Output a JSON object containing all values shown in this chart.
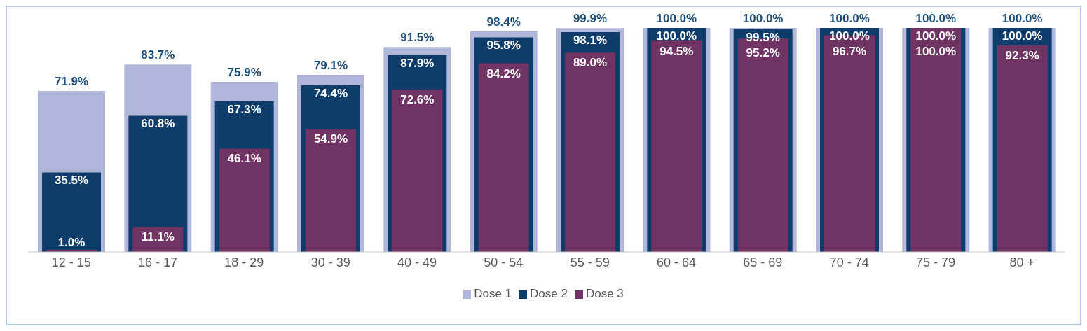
{
  "chart_data": {
    "type": "bar",
    "categories": [
      "12 - 15",
      "16 - 17",
      "18 - 29",
      "30 - 39",
      "40 - 49",
      "50 - 54",
      "55 - 59",
      "60 - 64",
      "65 - 69",
      "70 - 74",
      "75 - 79",
      "80 +"
    ],
    "ylim": [
      0,
      100
    ],
    "tick_labels": "x",
    "legend": "bottom",
    "series": [
      {
        "name": "Dose 1",
        "color": "#b0b7da",
        "values": [
          71.9,
          83.7,
          75.9,
          79.1,
          91.5,
          98.4,
          99.9,
          100.0,
          100.0,
          100.0,
          100.0,
          100.0
        ],
        "value_labels": [
          "71.9%",
          "83.7%",
          "75.9%",
          "79.1%",
          "91.5%",
          "98.4%",
          "99.9%",
          "100.0%",
          "100.0%",
          "100.0%",
          "100.0%",
          "100.0%"
        ]
      },
      {
        "name": "Dose 2",
        "color": "#0e3d6b",
        "values": [
          35.5,
          60.8,
          67.3,
          74.4,
          87.9,
          95.8,
          98.1,
          100.0,
          99.5,
          100.0,
          100.0,
          100.0
        ],
        "value_labels": [
          "35.5%",
          "60.8%",
          "67.3%",
          "74.4%",
          "87.9%",
          "95.8%",
          "98.1%",
          "100.0%",
          "99.5%",
          "100.0%",
          "100.0%",
          "100.0%"
        ]
      },
      {
        "name": "Dose 3",
        "color": "#6f3464",
        "values": [
          1.0,
          11.1,
          46.1,
          54.9,
          72.6,
          84.2,
          89.0,
          94.5,
          95.2,
          96.7,
          100.0,
          92.3
        ],
        "value_labels": [
          "1.0%",
          "11.1%",
          "46.1%",
          "54.9%",
          "72.6%",
          "84.2%",
          "89.0%",
          "94.5%",
          "95.2%",
          "96.7%",
          "100.0%",
          "92.3%"
        ]
      }
    ]
  }
}
